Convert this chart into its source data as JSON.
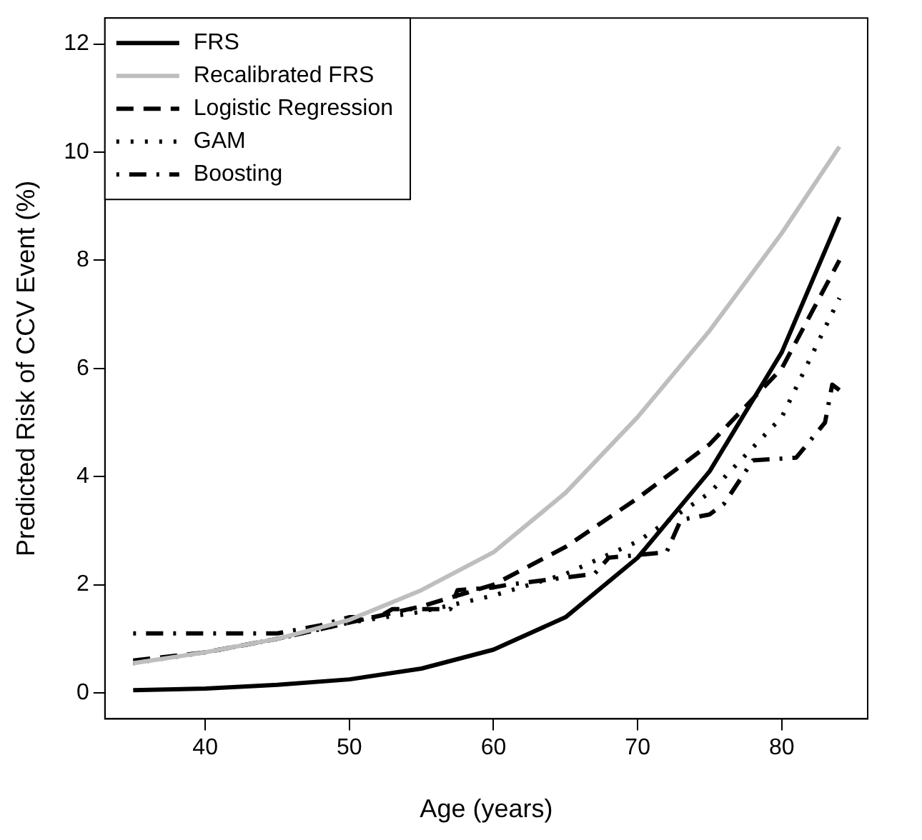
{
  "chart_data": {
    "type": "line",
    "xlabel": "Age (years)",
    "ylabel": "Predicted Risk of CCV Event (%)",
    "xlim": [
      33.04,
      85.96
    ],
    "ylim": [
      -0.48,
      12.48
    ],
    "xticks": [
      40,
      50,
      60,
      70,
      80
    ],
    "yticks": [
      0,
      2,
      4,
      6,
      8,
      10,
      12
    ],
    "grid": false,
    "legend": "top left",
    "marker": "none",
    "series": [
      {
        "name": "FRS",
        "color": "#000000",
        "line_style": "solid",
        "x": [
          35,
          40,
          45,
          50,
          55,
          60,
          65,
          70,
          75,
          80,
          84
        ],
        "values": [
          0.05,
          0.08,
          0.15,
          0.25,
          0.45,
          0.8,
          1.4,
          2.5,
          4.1,
          6.3,
          8.8
        ]
      },
      {
        "name": "Recalibrated FRS",
        "color": "#bebebe",
        "line_style": "solid",
        "x": [
          35,
          40,
          45,
          50,
          55,
          60,
          65,
          70,
          75,
          80,
          84
        ],
        "values": [
          0.55,
          0.75,
          1.0,
          1.35,
          1.9,
          2.6,
          3.7,
          5.1,
          6.7,
          8.5,
          10.1
        ]
      },
      {
        "name": "Logistic Regression",
        "color": "#000000",
        "line_style": "dashed",
        "x": [
          35,
          40,
          45,
          50,
          55,
          60,
          65,
          70,
          75,
          80,
          84
        ],
        "values": [
          0.6,
          0.75,
          1.0,
          1.3,
          1.6,
          2.0,
          2.7,
          3.6,
          4.6,
          6.0,
          8.0
        ]
      },
      {
        "name": "GAM",
        "color": "#000000",
        "line_style": "dotted",
        "x": [
          35,
          40,
          45,
          50,
          55,
          60,
          65,
          70,
          75,
          80,
          84
        ],
        "values": [
          0.55,
          0.75,
          1.0,
          1.3,
          1.5,
          1.8,
          2.2,
          2.8,
          3.7,
          5.1,
          7.3
        ]
      },
      {
        "name": "Boosting",
        "color": "#000000",
        "line_style": "dashdot",
        "x": [
          35,
          45,
          47,
          48,
          50,
          52,
          53,
          57,
          57.5,
          60,
          61,
          64,
          67,
          68,
          72,
          73,
          75,
          76,
          78,
          81,
          83,
          83.5,
          84
        ],
        "values": [
          1.1,
          1.1,
          1.2,
          1.25,
          1.4,
          1.4,
          1.55,
          1.55,
          1.9,
          1.95,
          2.0,
          2.1,
          2.2,
          2.5,
          2.6,
          3.2,
          3.3,
          3.5,
          4.3,
          4.35,
          5.0,
          5.7,
          5.6
        ]
      }
    ]
  }
}
